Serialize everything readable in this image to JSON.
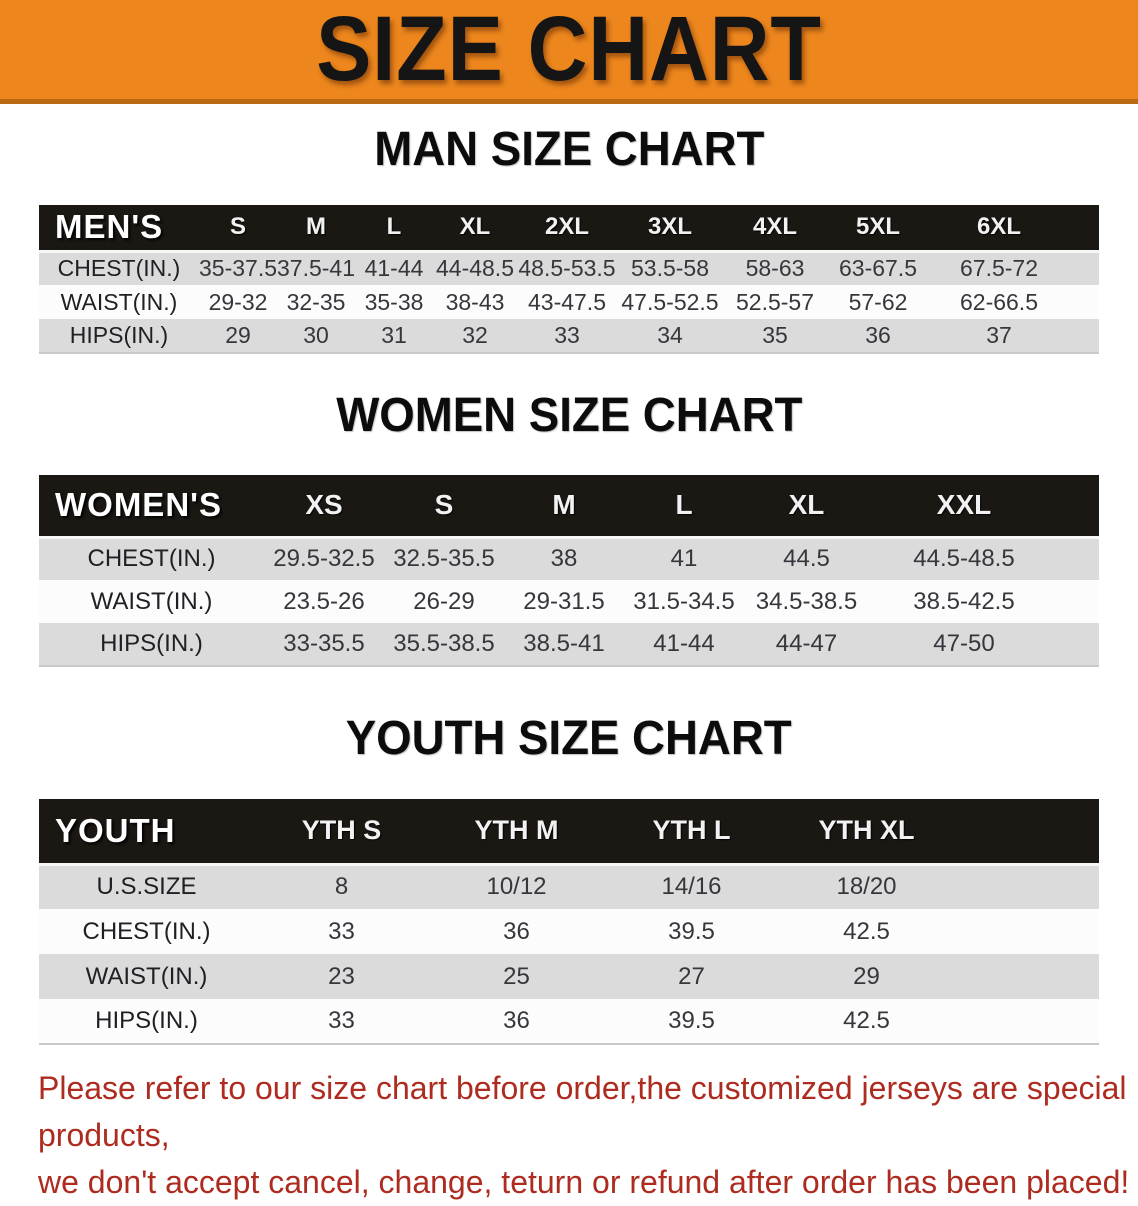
{
  "banner": {
    "title": "SIZE CHART",
    "bg_color": "#EC861D",
    "text_color": "#151515"
  },
  "sections": [
    {
      "heading": "MAN SIZE CHART",
      "table": {
        "header_label": "MEN'S",
        "columns": [
          "S",
          "M",
          "L",
          "XL",
          "2XL",
          "3XL",
          "4XL",
          "5XL",
          "6XL"
        ],
        "rows": [
          {
            "label": "CHEST(IN.)",
            "values": [
              "35-37.5",
              "37.5-41",
              "41-44",
              "44-48.5",
              "48.5-53.5",
              "53.5-58",
              "58-63",
              "63-67.5",
              "67.5-72"
            ]
          },
          {
            "label": "WAIST(IN.)",
            "values": [
              "29-32",
              "32-35",
              "35-38",
              "38-43",
              "43-47.5",
              "47.5-52.5",
              "52.5-57",
              "57-62",
              "62-66.5"
            ]
          },
          {
            "label": "HIPS(IN.)",
            "values": [
              "29",
              "30",
              "31",
              "32",
              "33",
              "34",
              "35",
              "36",
              "37"
            ]
          }
        ]
      }
    },
    {
      "heading": "WOMEN SIZE CHART",
      "table": {
        "header_label": "WOMEN'S",
        "columns": [
          "XS",
          "S",
          "M",
          "L",
          "XL",
          "XXL"
        ],
        "rows": [
          {
            "label": "CHEST(IN.)",
            "values": [
              "29.5-32.5",
              "32.5-35.5",
              "38",
              "41",
              "44.5",
              "44.5-48.5"
            ]
          },
          {
            "label": "WAIST(IN.)",
            "values": [
              "23.5-26",
              "26-29",
              "29-31.5",
              "31.5-34.5",
              "34.5-38.5",
              "38.5-42.5"
            ]
          },
          {
            "label": "HIPS(IN.)",
            "values": [
              "33-35.5",
              "35.5-38.5",
              "38.5-41",
              "41-44",
              "44-47",
              "47-50"
            ]
          }
        ]
      }
    },
    {
      "heading": "YOUTH SIZE CHART",
      "table": {
        "header_label": "YOUTH",
        "columns": [
          "YTH S",
          "YTH M",
          "YTH L",
          "YTH XL"
        ],
        "rows": [
          {
            "label": "U.S.SIZE",
            "values": [
              "8",
              "10/12",
              "14/16",
              "18/20"
            ]
          },
          {
            "label": "CHEST(IN.)",
            "values": [
              "33",
              "36",
              "39.5",
              "42.5"
            ]
          },
          {
            "label": "WAIST(IN.)",
            "values": [
              "23",
              "25",
              "27",
              "29"
            ]
          },
          {
            "label": "HIPS(IN.)",
            "values": [
              "33",
              "36",
              "39.5",
              "42.5"
            ]
          }
        ]
      }
    }
  ],
  "footer": {
    "line1": "Please refer to our size chart before order,the customized jerseys are special products,",
    "line2": "we don't accept cancel, change, teturn or refund after order has been placed!",
    "text_color": "#AE2B20"
  },
  "colors": {
    "banner_orange": "#EC861D",
    "table_header_black": "#1B1713",
    "stripe_gray": "#DBDBDB",
    "stripe_white": "#FCFCFC",
    "footer_red": "#AE2B20"
  }
}
